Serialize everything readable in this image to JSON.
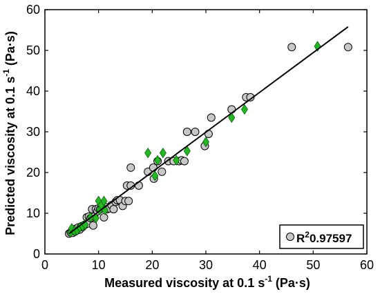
{
  "chart_data": {
    "type": "scatter",
    "xlabel": "Measured viscosity at 0.1 s",
    "xlabel_exp": "-1",
    "xlabel_unit": " (Pa·s)",
    "ylabel": "Predicted viscosity at 0.1 s",
    "ylabel_exp": "-1",
    "ylabel_unit": " (Pa·s)",
    "xlim": [
      0,
      60
    ],
    "ylim": [
      0,
      60
    ],
    "xticks": [
      0,
      10,
      20,
      30,
      40,
      50,
      60
    ],
    "yticks": [
      0,
      10,
      20,
      30,
      40,
      50,
      60
    ],
    "grid": false,
    "legend_position": "bottom-right",
    "legend": {
      "prefix": "R",
      "exp": "2",
      "value": "0.97597"
    },
    "fit_line": {
      "x": [
        4.5,
        56.5
      ],
      "y": [
        5.0,
        55.8
      ]
    },
    "colors": {
      "circle_fill": "#c8c8c8",
      "diamond_fill": "#22b922",
      "line": "#000000"
    },
    "series": [
      {
        "marker": "circle",
        "points": [
          [
            4.5,
            5.0
          ],
          [
            4.8,
            5.3
          ],
          [
            5.0,
            5.6
          ],
          [
            5.2,
            5.2
          ],
          [
            5.4,
            6.0
          ],
          [
            5.6,
            5.5
          ],
          [
            5.8,
            6.2
          ],
          [
            6.0,
            5.8
          ],
          [
            6.2,
            6.5
          ],
          [
            6.5,
            6.0
          ],
          [
            6.8,
            6.8
          ],
          [
            7.0,
            6.6
          ],
          [
            7.2,
            7.0
          ],
          [
            7.5,
            7.2
          ],
          [
            7.8,
            9.0
          ],
          [
            8.0,
            7.5
          ],
          [
            8.2,
            9.2
          ],
          [
            8.5,
            8.8
          ],
          [
            8.8,
            11.0
          ],
          [
            9.0,
            7.0
          ],
          [
            9.2,
            9.2
          ],
          [
            9.5,
            11.0
          ],
          [
            9.8,
            10.5
          ],
          [
            10.0,
            11.2
          ],
          [
            10.3,
            11.0
          ],
          [
            10.6,
            11.8
          ],
          [
            11.0,
            9.0
          ],
          [
            11.3,
            11.5
          ],
          [
            11.6,
            11.0
          ],
          [
            12.0,
            11.2
          ],
          [
            12.4,
            12.0
          ],
          [
            12.8,
            11.0
          ],
          [
            13.2,
            12.8
          ],
          [
            13.5,
            13.2
          ],
          [
            14.0,
            13.2
          ],
          [
            14.5,
            11.8
          ],
          [
            15.0,
            13.0
          ],
          [
            15.3,
            16.8
          ],
          [
            15.6,
            13.0
          ],
          [
            16.0,
            21.2
          ],
          [
            16.0,
            16.8
          ],
          [
            17.5,
            16.8
          ],
          [
            19.2,
            20.2
          ],
          [
            20.2,
            21.2
          ],
          [
            20.3,
            18.5
          ],
          [
            21.0,
            22.8
          ],
          [
            21.8,
            20.2
          ],
          [
            23.0,
            22.8
          ],
          [
            24.0,
            22.8
          ],
          [
            25.0,
            22.8
          ],
          [
            25.5,
            23.0
          ],
          [
            26.0,
            22.8
          ],
          [
            26.5,
            30.0
          ],
          [
            28.0,
            30.0
          ],
          [
            29.8,
            26.5
          ],
          [
            30.5,
            29.5
          ],
          [
            31.0,
            33.5
          ],
          [
            34.8,
            35.5
          ],
          [
            37.5,
            38.5
          ],
          [
            38.3,
            38.5
          ],
          [
            46.0,
            50.8
          ],
          [
            56.5,
            50.8
          ]
        ]
      },
      {
        "marker": "diamond",
        "points": [
          [
            4.8,
            5.3
          ],
          [
            5.0,
            6.3
          ],
          [
            5.5,
            5.6
          ],
          [
            6.0,
            5.8
          ],
          [
            6.5,
            6.5
          ],
          [
            7.0,
            6.8
          ],
          [
            7.5,
            7.2
          ],
          [
            8.5,
            9.0
          ],
          [
            9.5,
            8.8
          ],
          [
            10.0,
            13.0
          ],
          [
            10.2,
            10.8
          ],
          [
            10.5,
            12.0
          ],
          [
            11.0,
            13.0
          ],
          [
            11.2,
            10.8
          ],
          [
            19.2,
            24.8
          ],
          [
            20.5,
            19.2
          ],
          [
            21.0,
            23.0
          ],
          [
            22.0,
            24.8
          ],
          [
            24.5,
            23.0
          ],
          [
            26.5,
            25.3
          ],
          [
            30.0,
            27.5
          ],
          [
            34.8,
            33.5
          ],
          [
            37.2,
            35.5
          ],
          [
            50.8,
            51.0
          ]
        ]
      }
    ]
  }
}
